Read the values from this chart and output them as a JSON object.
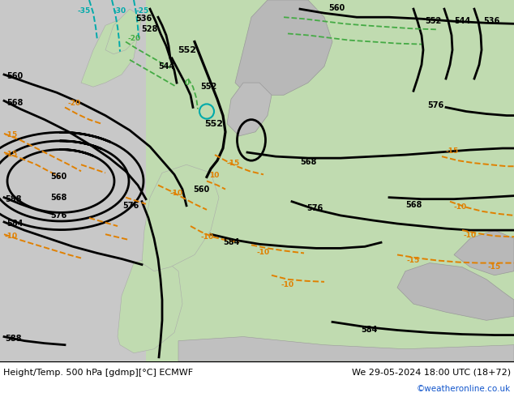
{
  "title_left": "Height/Temp. 500 hPa [gdmp][°C] ECMWF",
  "title_right": "We 29-05-2024 18:00 UTC (18+72)",
  "credit": "©weatheronline.co.uk",
  "bg_grey": "#c8c8c8",
  "bg_green": "#c0dbb0",
  "bg_green2": "#d0e8c0",
  "text_color_credit": "#1155cc",
  "orange": "#e08000",
  "cyan": "#00aaaa",
  "green_line": "#44aa44",
  "black": "#000000"
}
